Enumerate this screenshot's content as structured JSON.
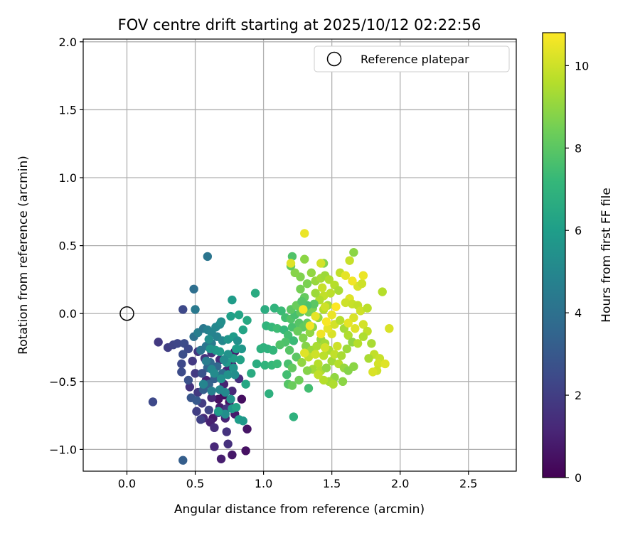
{
  "chart_data": {
    "type": "scatter",
    "title": "FOV centre drift starting at 2025/10/12 02:22:56",
    "xlabel": "Angular distance from reference (arcmin)",
    "ylabel": "Rotation from reference (arcmin)",
    "xlim": [
      -0.32,
      2.85
    ],
    "ylim": [
      -1.16,
      2.02
    ],
    "xticks": [
      0.0,
      0.5,
      1.0,
      1.5,
      2.0,
      2.5
    ],
    "xtick_labels": [
      "0.0",
      "0.5",
      "1.0",
      "1.5",
      "2.0",
      "2.5"
    ],
    "yticks": [
      -1.0,
      -0.5,
      0.0,
      0.5,
      1.0,
      1.5,
      2.0
    ],
    "ytick_labels": [
      "−1.0",
      "−0.5",
      "0.0",
      "0.5",
      "1.0",
      "1.5",
      "2.0"
    ],
    "grid": true,
    "legend": {
      "placement": "top-right",
      "entries": [
        {
          "label": "Reference platepar",
          "marker": "open-circle"
        }
      ]
    },
    "reference_point": {
      "x": 0.0,
      "y": 0.0
    },
    "colorbar": {
      "label": "Hours from first FF file",
      "colormap": "viridis",
      "range": [
        0,
        10.8
      ],
      "ticks": [
        0,
        2,
        4,
        6,
        8,
        10
      ],
      "tick_labels": [
        "0",
        "2",
        "4",
        "6",
        "8",
        "10"
      ]
    },
    "points_format": [
      "x_arcmin",
      "y_arcmin",
      "hours"
    ],
    "points": [
      [
        0.71,
        -0.6,
        0.3
      ],
      [
        0.67,
        -0.63,
        0.5
      ],
      [
        0.75,
        -0.65,
        0.6
      ],
      [
        0.84,
        -0.63,
        0.4
      ],
      [
        0.63,
        -0.77,
        0.7
      ],
      [
        0.68,
        -0.69,
        0.9
      ],
      [
        0.61,
        -0.8,
        1.0
      ],
      [
        0.72,
        -0.77,
        1.1
      ],
      [
        0.79,
        -0.74,
        0.8
      ],
      [
        0.88,
        -0.85,
        0.6
      ],
      [
        0.87,
        -1.01,
        0.5
      ],
      [
        0.77,
        -1.04,
        0.7
      ],
      [
        0.69,
        -1.07,
        0.9
      ],
      [
        0.64,
        -0.98,
        1.2
      ],
      [
        0.74,
        -0.96,
        1.5
      ],
      [
        0.73,
        -0.87,
        1.6
      ],
      [
        0.64,
        -0.84,
        1.4
      ],
      [
        0.56,
        -0.77,
        1.3
      ],
      [
        0.62,
        -0.62,
        1.2
      ],
      [
        0.58,
        -0.49,
        1.1
      ],
      [
        0.65,
        -0.46,
        1.3
      ],
      [
        0.71,
        -0.52,
        1.0
      ],
      [
        0.77,
        -0.57,
        1.2
      ],
      [
        0.82,
        -0.48,
        1.4
      ],
      [
        0.77,
        -0.38,
        1.0
      ],
      [
        0.79,
        -0.28,
        0.9
      ],
      [
        0.73,
        -0.42,
        1.1
      ],
      [
        0.68,
        -0.34,
        1.3
      ],
      [
        0.62,
        -0.29,
        1.5
      ],
      [
        0.57,
        -0.33,
        1.6
      ],
      [
        0.52,
        -0.28,
        1.7
      ],
      [
        0.48,
        -0.35,
        1.8
      ],
      [
        0.5,
        -0.44,
        1.9
      ],
      [
        0.46,
        -0.54,
        1.6
      ],
      [
        0.52,
        -0.58,
        1.8
      ],
      [
        0.55,
        -0.66,
        1.9
      ],
      [
        0.51,
        -0.72,
        2.0
      ],
      [
        0.54,
        -0.78,
        2.1
      ],
      [
        0.6,
        -0.71,
        2.2
      ],
      [
        0.67,
        -0.73,
        2.3
      ],
      [
        0.73,
        -0.7,
        1.7
      ],
      [
        0.41,
        -1.08,
        3.2
      ],
      [
        0.19,
        -0.65,
        2.4
      ],
      [
        0.23,
        -0.21,
        1.8
      ],
      [
        0.3,
        -0.25,
        2.0
      ],
      [
        0.34,
        -0.23,
        2.2
      ],
      [
        0.37,
        -0.22,
        2.3
      ],
      [
        0.42,
        -0.22,
        2.5
      ],
      [
        0.45,
        -0.26,
        2.4
      ],
      [
        0.41,
        -0.3,
        2.6
      ],
      [
        0.4,
        -0.37,
        2.4
      ],
      [
        0.4,
        -0.43,
        2.5
      ],
      [
        0.45,
        -0.49,
        2.7
      ],
      [
        0.47,
        -0.62,
        2.9
      ],
      [
        0.51,
        -0.64,
        3.0
      ],
      [
        0.56,
        -0.56,
        3.2
      ],
      [
        0.6,
        -0.52,
        3.4
      ],
      [
        0.64,
        -0.48,
        3.3
      ],
      [
        0.59,
        -0.4,
        3.5
      ],
      [
        0.55,
        -0.44,
        2.8
      ],
      [
        0.61,
        -0.36,
        3.7
      ],
      [
        0.66,
        -0.39,
        3.6
      ],
      [
        0.7,
        -0.44,
        3.9
      ],
      [
        0.41,
        0.03,
        2.4
      ],
      [
        0.49,
        0.18,
        3.9
      ],
      [
        0.59,
        0.42,
        4.2
      ],
      [
        0.5,
        0.03,
        4.4
      ],
      [
        0.49,
        -0.17,
        4.0
      ],
      [
        0.52,
        -0.14,
        4.6
      ],
      [
        0.56,
        -0.11,
        4.3
      ],
      [
        0.59,
        -0.12,
        4.7
      ],
      [
        0.62,
        -0.14,
        4.9
      ],
      [
        0.65,
        -0.1,
        5.0
      ],
      [
        0.68,
        -0.08,
        5.1
      ],
      [
        0.69,
        -0.06,
        5.3
      ],
      [
        0.66,
        -0.17,
        4.8
      ],
      [
        0.62,
        -0.22,
        4.5
      ],
      [
        0.58,
        -0.24,
        4.2
      ],
      [
        0.54,
        -0.27,
        4.1
      ],
      [
        0.58,
        -0.35,
        4.6
      ],
      [
        0.62,
        -0.41,
        5.0
      ],
      [
        0.64,
        -0.44,
        5.2
      ],
      [
        0.69,
        -0.48,
        5.4
      ],
      [
        0.74,
        -0.45,
        5.5
      ],
      [
        0.78,
        -0.4,
        5.6
      ],
      [
        0.79,
        -0.45,
        5.3
      ],
      [
        0.73,
        -0.36,
        5.7
      ],
      [
        0.68,
        -0.28,
        5.9
      ],
      [
        0.65,
        -0.27,
        5.8
      ],
      [
        0.61,
        -0.26,
        5.6
      ],
      [
        0.6,
        -0.19,
        5.3
      ],
      [
        0.7,
        -0.2,
        5.0
      ],
      [
        0.74,
        -0.19,
        5.6
      ],
      [
        0.78,
        -0.17,
        5.9
      ],
      [
        0.81,
        -0.2,
        5.4
      ],
      [
        0.84,
        -0.26,
        5.7
      ],
      [
        0.8,
        -0.26,
        6.0
      ],
      [
        0.83,
        -0.34,
        6.2
      ],
      [
        0.78,
        -0.33,
        6.1
      ],
      [
        0.74,
        -0.3,
        5.5
      ],
      [
        0.71,
        -0.34,
        5.2
      ],
      [
        0.77,
        0.1,
        5.9
      ],
      [
        0.76,
        -0.02,
        6.1
      ],
      [
        0.82,
        -0.01,
        6.3
      ],
      [
        0.88,
        -0.05,
        6.5
      ],
      [
        0.85,
        -0.12,
        6.3
      ],
      [
        0.94,
        0.15,
        6.6
      ],
      [
        0.56,
        -0.52,
        4.9
      ],
      [
        0.62,
        -0.57,
        4.7
      ],
      [
        0.68,
        -0.56,
        5.0
      ],
      [
        0.72,
        -0.58,
        5.1
      ],
      [
        0.76,
        -0.63,
        5.5
      ],
      [
        0.77,
        -0.7,
        5.7
      ],
      [
        0.72,
        -0.74,
        5.3
      ],
      [
        0.67,
        -0.72,
        5.9
      ],
      [
        0.82,
        -0.78,
        6.0
      ],
      [
        0.85,
        -0.79,
        5.8
      ],
      [
        0.8,
        -0.69,
        6.2
      ],
      [
        0.87,
        -0.52,
        6.4
      ],
      [
        0.91,
        -0.44,
        6.6
      ],
      [
        0.95,
        -0.37,
        6.7
      ],
      [
        0.98,
        -0.26,
        6.8
      ],
      [
        1.03,
        -0.26,
        6.9
      ],
      [
        1.07,
        -0.27,
        7.1
      ],
      [
        1.01,
        -0.38,
        7.0
      ],
      [
        1.06,
        -0.38,
        7.2
      ],
      [
        1.1,
        -0.37,
        7.3
      ],
      [
        1.04,
        -0.59,
        6.8
      ],
      [
        1.0,
        -0.25,
        6.9
      ],
      [
        1.02,
        -0.09,
        7.0
      ],
      [
        1.06,
        -0.1,
        7.2
      ],
      [
        1.1,
        -0.11,
        7.4
      ],
      [
        1.15,
        -0.12,
        7.2
      ],
      [
        1.18,
        -0.16,
        7.5
      ],
      [
        1.21,
        -0.1,
        7.6
      ],
      [
        1.22,
        -0.2,
        7.3
      ],
      [
        1.16,
        -0.21,
        7.7
      ],
      [
        1.12,
        -0.23,
        7.8
      ],
      [
        1.19,
        -0.27,
        7.9
      ],
      [
        1.24,
        -0.32,
        8.0
      ],
      [
        1.18,
        -0.37,
        7.6
      ],
      [
        1.21,
        -0.4,
        8.1
      ],
      [
        1.17,
        -0.45,
        7.5
      ],
      [
        1.18,
        -0.52,
        7.9
      ],
      [
        1.21,
        -0.53,
        8.3
      ],
      [
        1.26,
        -0.49,
        8.4
      ],
      [
        1.22,
        -0.76,
        6.9
      ],
      [
        1.01,
        0.03,
        6.7
      ],
      [
        1.08,
        0.04,
        7.0
      ],
      [
        1.13,
        0.02,
        7.3
      ],
      [
        1.16,
        -0.03,
        7.5
      ],
      [
        1.2,
        -0.04,
        7.8
      ],
      [
        1.23,
        -0.01,
        7.6
      ],
      [
        1.26,
        -0.07,
        7.9
      ],
      [
        1.29,
        -0.1,
        8.1
      ],
      [
        1.32,
        -0.07,
        8.2
      ],
      [
        1.2,
        0.03,
        8.0
      ],
      [
        1.24,
        0.06,
        8.3
      ],
      [
        1.29,
        0.04,
        8.4
      ],
      [
        1.33,
        0.01,
        8.5
      ],
      [
        1.36,
        0.04,
        8.6
      ],
      [
        1.3,
        0.12,
        8.2
      ],
      [
        1.27,
        0.18,
        8.5
      ],
      [
        1.32,
        0.22,
        8.6
      ],
      [
        1.27,
        0.27,
        8.7
      ],
      [
        1.23,
        0.3,
        8.8
      ],
      [
        1.2,
        0.35,
        8.2
      ],
      [
        1.21,
        0.42,
        7.8
      ],
      [
        1.3,
        0.4,
        8.9
      ],
      [
        1.35,
        0.3,
        9.0
      ],
      [
        1.38,
        0.24,
        9.1
      ],
      [
        1.42,
        0.26,
        9.3
      ],
      [
        1.45,
        0.28,
        9.2
      ],
      [
        1.48,
        0.25,
        9.5
      ],
      [
        1.52,
        0.21,
        9.6
      ],
      [
        1.55,
        0.17,
        9.4
      ],
      [
        1.49,
        0.15,
        9.7
      ],
      [
        1.44,
        0.13,
        9.8
      ],
      [
        1.41,
        0.1,
        9.5
      ],
      [
        1.38,
        0.15,
        9.2
      ],
      [
        1.43,
        0.19,
        9.9
      ],
      [
        1.47,
        0.06,
        9.4
      ],
      [
        1.44,
        0.03,
        9.6
      ],
      [
        1.4,
        -0.03,
        9.1
      ],
      [
        1.36,
        -0.1,
        8.9
      ],
      [
        1.34,
        -0.14,
        9.0
      ],
      [
        1.29,
        -0.18,
        8.7
      ],
      [
        1.31,
        -0.24,
        8.8
      ],
      [
        1.35,
        -0.27,
        9.2
      ],
      [
        1.39,
        -0.24,
        9.4
      ],
      [
        1.42,
        -0.19,
        9.1
      ],
      [
        1.45,
        -0.22,
        9.3
      ],
      [
        1.48,
        -0.27,
        9.5
      ],
      [
        1.44,
        -0.31,
        9.7
      ],
      [
        1.4,
        -0.37,
        9.6
      ],
      [
        1.36,
        -0.41,
        9.3
      ],
      [
        1.32,
        -0.42,
        8.8
      ],
      [
        1.28,
        -0.36,
        9.0
      ],
      [
        1.33,
        -0.32,
        9.8
      ],
      [
        1.38,
        -0.3,
        10.0
      ],
      [
        1.42,
        -0.42,
        9.5
      ],
      [
        1.46,
        -0.4,
        9.0
      ],
      [
        1.5,
        -0.35,
        9.3
      ],
      [
        1.52,
        -0.3,
        9.8
      ],
      [
        1.54,
        -0.24,
        10.0
      ],
      [
        1.5,
        -0.15,
        10.2
      ],
      [
        1.47,
        -0.11,
        10.4
      ],
      [
        1.52,
        -0.08,
        10.1
      ],
      [
        1.56,
        -0.05,
        9.6
      ],
      [
        1.59,
        -0.11,
        9.3
      ],
      [
        1.62,
        -0.16,
        9.5
      ],
      [
        1.65,
        -0.21,
        9.0
      ],
      [
        1.61,
        -0.26,
        9.2
      ],
      [
        1.57,
        -0.31,
        9.4
      ],
      [
        1.55,
        -0.37,
        9.6
      ],
      [
        1.59,
        -0.4,
        9.1
      ],
      [
        1.62,
        -0.42,
        8.8
      ],
      [
        1.66,
        -0.39,
        8.9
      ],
      [
        1.52,
        -0.47,
        9.0
      ],
      [
        1.48,
        -0.5,
        9.3
      ],
      [
        1.44,
        -0.49,
        9.6
      ],
      [
        1.4,
        -0.45,
        9.8
      ],
      [
        1.51,
        -0.52,
        9.5
      ],
      [
        1.58,
        -0.5,
        8.9
      ],
      [
        1.33,
        -0.55,
        7.5
      ],
      [
        1.37,
        0.07,
        8.0
      ],
      [
        1.32,
        0.06,
        7.7
      ],
      [
        1.28,
        0.09,
        7.9
      ],
      [
        1.27,
        0.01,
        8.1
      ],
      [
        1.25,
        -0.13,
        8.3
      ],
      [
        1.44,
        0.37,
        8.7
      ],
      [
        1.56,
        0.3,
        9.8
      ],
      [
        1.63,
        0.39,
        9.9
      ],
      [
        1.66,
        0.45,
        8.9
      ],
      [
        1.3,
        0.59,
        10.5
      ],
      [
        1.2,
        0.37,
        10.3
      ],
      [
        1.42,
        0.37,
        10.1
      ],
      [
        1.6,
        0.28,
        10.4
      ],
      [
        1.69,
        0.2,
        10.2
      ],
      [
        1.72,
        0.22,
        10.0
      ],
      [
        1.73,
        0.28,
        10.5
      ],
      [
        1.65,
        0.24,
        10.6
      ],
      [
        1.63,
        0.11,
        10.3
      ],
      [
        1.6,
        0.08,
        10.0
      ],
      [
        1.65,
        0.07,
        9.9
      ],
      [
        1.69,
        0.06,
        9.8
      ],
      [
        1.71,
        0.02,
        10.0
      ],
      [
        1.66,
        -0.03,
        10.2
      ],
      [
        1.62,
        -0.07,
        10.4
      ],
      [
        1.67,
        -0.11,
        10.3
      ],
      [
        1.73,
        -0.08,
        10.1
      ],
      [
        1.76,
        -0.13,
        9.8
      ],
      [
        1.73,
        -0.17,
        9.5
      ],
      [
        1.69,
        -0.22,
        9.6
      ],
      [
        1.76,
        0.04,
        9.7
      ],
      [
        1.87,
        0.16,
        9.6
      ],
      [
        1.92,
        -0.11,
        10.2
      ],
      [
        1.79,
        -0.22,
        9.4
      ],
      [
        1.81,
        -0.3,
        9.8
      ],
      [
        1.85,
        -0.33,
        9.9
      ],
      [
        1.77,
        -0.33,
        9.4
      ],
      [
        1.84,
        -0.37,
        10.1
      ],
      [
        1.89,
        -0.37,
        10.3
      ],
      [
        1.83,
        -0.42,
        10.0
      ],
      [
        1.8,
        -0.43,
        10.2
      ],
      [
        1.45,
        -0.25,
        10.1
      ],
      [
        1.42,
        -0.15,
        10.6
      ],
      [
        1.46,
        -0.06,
        10.7
      ],
      [
        1.5,
        -0.01,
        10.5
      ],
      [
        1.53,
        0.05,
        10.8
      ],
      [
        1.38,
        -0.02,
        10.4
      ],
      [
        1.34,
        -0.09,
        10.6
      ],
      [
        1.3,
        -0.29,
        10.3
      ],
      [
        1.29,
        0.03,
        10.7
      ],
      [
        1.45,
        0.05,
        10.0
      ]
    ]
  }
}
